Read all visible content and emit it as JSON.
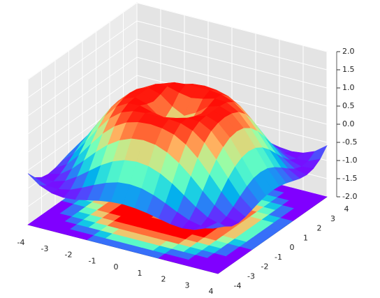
{
  "chart_data": {
    "type": "surface3d",
    "x": [
      -4,
      -3.5,
      -3,
      -2.5,
      -2,
      -1.5,
      -1,
      -0.5,
      0,
      0.5,
      1,
      1.5,
      2,
      2.5,
      3,
      3.5,
      4
    ],
    "y": [
      -4,
      -3.5,
      -3,
      -2.5,
      -2,
      -1.5,
      -1,
      -0.5,
      0,
      0.5,
      1,
      1.5,
      2,
      2.5,
      3,
      3.5,
      4
    ],
    "z": [
      [
        -0.59,
        -0.83,
        -0.96,
        -1.0,
        -0.97,
        -0.9,
        -0.83,
        -0.78,
        -0.76,
        -0.78,
        -0.83,
        -0.9,
        -0.97,
        -1.0,
        -0.96,
        -0.83,
        -0.59
      ],
      [
        -0.83,
        -0.97,
        -0.99,
        -0.92,
        -0.78,
        -0.62,
        -0.48,
        -0.38,
        -0.35,
        -0.38,
        -0.48,
        -0.62,
        -0.78,
        -0.92,
        -0.99,
        -0.97,
        -0.83
      ],
      [
        -0.96,
        -0.99,
        -0.89,
        -0.69,
        -0.45,
        -0.21,
        -0.02,
        0.1,
        0.14,
        0.1,
        -0.02,
        -0.21,
        -0.45,
        -0.69,
        -0.89,
        -0.99,
        -0.96
      ],
      [
        -1.0,
        -0.92,
        -0.69,
        -0.38,
        -0.06,
        0.22,
        0.43,
        0.56,
        0.6,
        0.56,
        0.43,
        0.22,
        -0.06,
        -0.38,
        -0.69,
        -0.92,
        -1.0
      ],
      [
        -0.97,
        -0.78,
        -0.45,
        -0.06,
        0.31,
        0.6,
        0.79,
        0.88,
        0.91,
        0.88,
        0.79,
        0.6,
        0.31,
        -0.06,
        -0.45,
        -0.78,
        -0.97
      ],
      [
        -0.9,
        -0.62,
        -0.21,
        0.22,
        0.6,
        0.85,
        0.97,
        1.0,
        1.0,
        1.0,
        0.97,
        0.85,
        0.6,
        0.22,
        -0.21,
        -0.62,
        -0.9
      ],
      [
        -0.83,
        -0.48,
        -0.02,
        0.43,
        0.79,
        0.97,
        0.99,
        0.9,
        0.84,
        0.9,
        0.99,
        0.97,
        0.79,
        0.43,
        -0.02,
        -0.48,
        -0.83
      ],
      [
        -0.78,
        -0.38,
        0.1,
        0.56,
        0.88,
        1.0,
        0.9,
        0.65,
        0.48,
        0.65,
        0.9,
        1.0,
        0.88,
        0.56,
        0.1,
        -0.38,
        -0.78
      ],
      [
        -0.76,
        -0.35,
        0.14,
        0.6,
        0.91,
        1.0,
        0.84,
        0.48,
        0,
        0.48,
        0.84,
        1.0,
        0.91,
        0.6,
        0.14,
        -0.35,
        -0.76
      ],
      [
        -0.78,
        -0.38,
        0.1,
        0.56,
        0.88,
        1.0,
        0.9,
        0.65,
        0.48,
        0.65,
        0.9,
        1.0,
        0.88,
        0.56,
        0.1,
        -0.38,
        -0.78
      ],
      [
        -0.83,
        -0.48,
        -0.02,
        0.43,
        0.79,
        0.97,
        0.99,
        0.9,
        0.84,
        0.9,
        0.99,
        0.97,
        0.79,
        0.43,
        -0.02,
        -0.48,
        -0.83
      ],
      [
        -0.9,
        -0.62,
        -0.21,
        0.22,
        0.6,
        0.85,
        0.97,
        1.0,
        1.0,
        1.0,
        0.97,
        0.85,
        0.6,
        0.22,
        -0.21,
        -0.62,
        -0.9
      ],
      [
        -0.97,
        -0.78,
        -0.45,
        -0.06,
        0.31,
        0.6,
        0.79,
        0.88,
        0.91,
        0.88,
        0.79,
        0.6,
        0.31,
        -0.06,
        -0.45,
        -0.78,
        -0.97
      ],
      [
        -1.0,
        -0.92,
        -0.69,
        -0.38,
        -0.06,
        0.22,
        0.43,
        0.56,
        0.6,
        0.56,
        0.43,
        0.22,
        -0.06,
        -0.38,
        -0.69,
        -0.92,
        -1.0
      ],
      [
        -0.96,
        -0.99,
        -0.89,
        -0.69,
        -0.45,
        -0.21,
        -0.02,
        0.1,
        0.14,
        0.1,
        -0.02,
        -0.21,
        -0.45,
        -0.69,
        -0.89,
        -0.99,
        -0.96
      ],
      [
        -0.83,
        -0.97,
        -0.99,
        -0.92,
        -0.78,
        -0.62,
        -0.48,
        -0.38,
        -0.35,
        -0.38,
        -0.48,
        -0.62,
        -0.78,
        -0.92,
        -0.99,
        -0.97,
        -0.83
      ],
      [
        -0.59,
        -0.83,
        -0.96,
        -1.0,
        -0.97,
        -0.9,
        -0.83,
        -0.78,
        -0.76,
        -0.78,
        -0.83,
        -0.9,
        -0.97,
        -1.0,
        -0.96,
        -0.83,
        -0.59
      ]
    ],
    "xlim": [
      -4,
      4
    ],
    "ylim": [
      -4,
      4
    ],
    "zlim": [
      -2,
      2
    ],
    "xticks": [
      -4,
      -3,
      -2,
      -1,
      0,
      1,
      2,
      3,
      4
    ],
    "yticks": [
      -4,
      -3,
      -2,
      -1,
      0,
      1,
      2,
      3,
      4
    ],
    "zticks": [
      {
        "value": -2,
        "label": "-2.0"
      },
      {
        "value": -1.5,
        "label": "-1.5"
      },
      {
        "value": -1,
        "label": "-1.0"
      },
      {
        "value": -0.5,
        "label": "-0.5"
      },
      {
        "value": 0,
        "label": "0.0"
      },
      {
        "value": 0.5,
        "label": "0.5"
      },
      {
        "value": 1,
        "label": "1.0"
      },
      {
        "value": 1.5,
        "label": "1.5"
      },
      {
        "value": 2,
        "label": "2.0"
      }
    ],
    "colormap": "rainbow",
    "contour_offset": -2,
    "grid": true
  }
}
